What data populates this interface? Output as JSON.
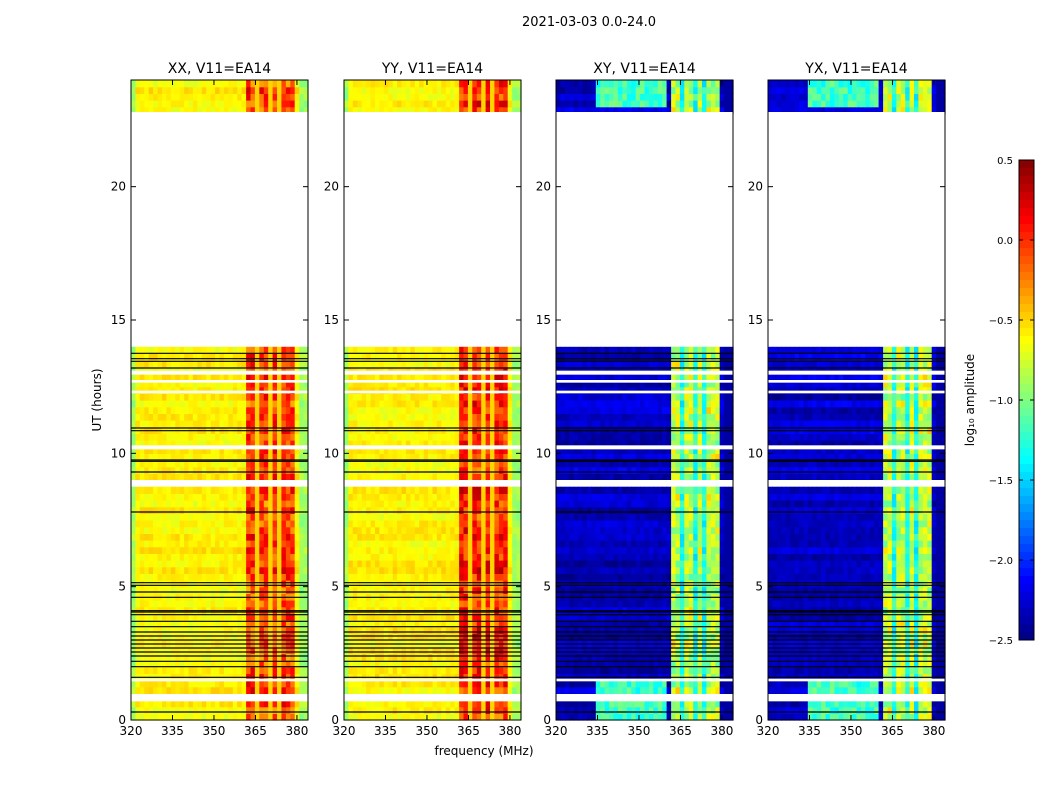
{
  "chart_data": {
    "type": "heatmap",
    "title": "2021-03-03 0.0-24.0",
    "xlabel": "frequency (MHz)",
    "ylabel": "UT (hours)",
    "xlim": [
      320,
      384
    ],
    "ylim": [
      0,
      24
    ],
    "xticks": [
      320,
      335,
      350,
      365,
      380
    ],
    "yticks": [
      0,
      5,
      10,
      15,
      20
    ],
    "panels": [
      {
        "title": "XX, V11=EA14",
        "base_level": -0.6,
        "band_level": -0.05
      },
      {
        "title": "YY, V11=EA14",
        "base_level": -0.6,
        "band_level": 0.0
      },
      {
        "title": "XY, V11=EA14",
        "base_level": -2.3,
        "band_level": -0.8
      },
      {
        "title": "YX, V11=EA14",
        "base_level": -2.3,
        "band_level": -0.8
      }
    ],
    "bright_band_mhz": [
      [
        362,
        365.5
      ],
      [
        366,
        369.5
      ],
      [
        370.5,
        373.5
      ],
      [
        374.5,
        378.5
      ]
    ],
    "flagged_hours": [
      [
        14.0,
        22.8
      ],
      [
        0.7,
        0.92
      ],
      [
        1.45,
        1.55
      ],
      [
        8.85,
        9.0
      ],
      [
        10.15,
        10.3
      ],
      [
        12.25,
        12.35
      ],
      [
        12.65,
        12.75
      ],
      [
        12.95,
        13.1
      ]
    ],
    "gap_lines_hours": [
      0.3,
      1.6,
      2.0,
      2.2,
      2.4,
      2.55,
      2.7,
      2.85,
      3.0,
      3.15,
      3.3,
      3.5,
      3.7,
      3.95,
      4.05,
      4.1,
      4.6,
      4.8,
      5.05,
      5.15,
      7.8,
      9.3,
      9.7,
      9.75,
      10.85,
      10.95,
      13.2,
      13.45,
      13.55,
      13.75
    ],
    "colorbar": {
      "label": "log₁₀ amplitude",
      "range": [
        -2.5,
        0.5
      ],
      "ticks": [
        "0.5",
        "0.0",
        "−0.5",
        "−1.0",
        "−1.5",
        "−2.0",
        "−2.5"
      ]
    },
    "ytick_labels": [
      "0",
      "5",
      "10",
      "15",
      "20"
    ],
    "xtick_labels": [
      "320",
      "335",
      "350",
      "365",
      "380"
    ]
  }
}
